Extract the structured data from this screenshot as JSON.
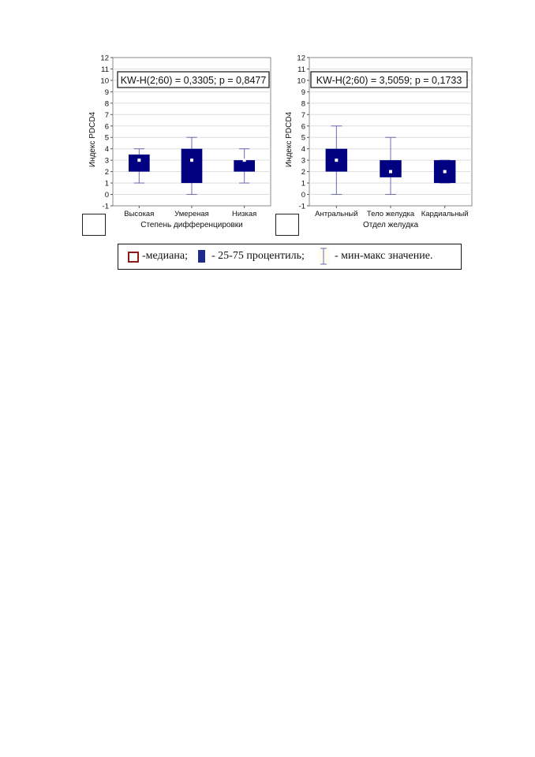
{
  "chart_data": [
    {
      "type": "box",
      "stat_text": "KW-H(2;60) = 0,3305; p = 0,8477",
      "xlabel": "Степень дифференцировки",
      "ylabel": "Индекс PDCD4",
      "ylim": [
        -1,
        12
      ],
      "yticks": [
        -1,
        0,
        1,
        2,
        3,
        4,
        5,
        6,
        7,
        8,
        9,
        10,
        11,
        12
      ],
      "grid": true,
      "categories": [
        "Высокая",
        "Умереная",
        "Низкая"
      ],
      "median": [
        3,
        3,
        3
      ],
      "q1": [
        2,
        1,
        2
      ],
      "q3": [
        3.5,
        4,
        3
      ],
      "min": [
        1,
        0,
        1
      ],
      "max": [
        4,
        5,
        4
      ]
    },
    {
      "type": "box",
      "stat_text": "KW-H(2;60) = 3,5059; p = 0,1733",
      "xlabel": "Отдел желудка",
      "ylabel": "Индекс PDCD4",
      "ylim": [
        -1,
        12
      ],
      "yticks": [
        -1,
        0,
        1,
        2,
        3,
        4,
        5,
        6,
        7,
        8,
        9,
        10,
        11,
        12
      ],
      "grid": true,
      "categories": [
        "Антральный",
        "Тело желудка",
        "Кардиальный"
      ],
      "median": [
        3,
        2,
        2
      ],
      "q1": [
        2,
        1.5,
        1
      ],
      "q3": [
        4,
        3,
        3
      ],
      "min": [
        0,
        0,
        1
      ],
      "max": [
        6,
        5,
        3
      ]
    }
  ],
  "legend": {
    "median_label": "-медиана;",
    "box_label": "- 25-75 процентиль;",
    "whisker_label": "- мин-макс значение."
  },
  "colors": {
    "box_fill": "#000080",
    "whisker": "#6b6bb5",
    "grid": "#dddddd",
    "median_marker": "#ffffff",
    "legend_median_border": "#8b1a1a",
    "legend_box": "#1f2a8f"
  }
}
